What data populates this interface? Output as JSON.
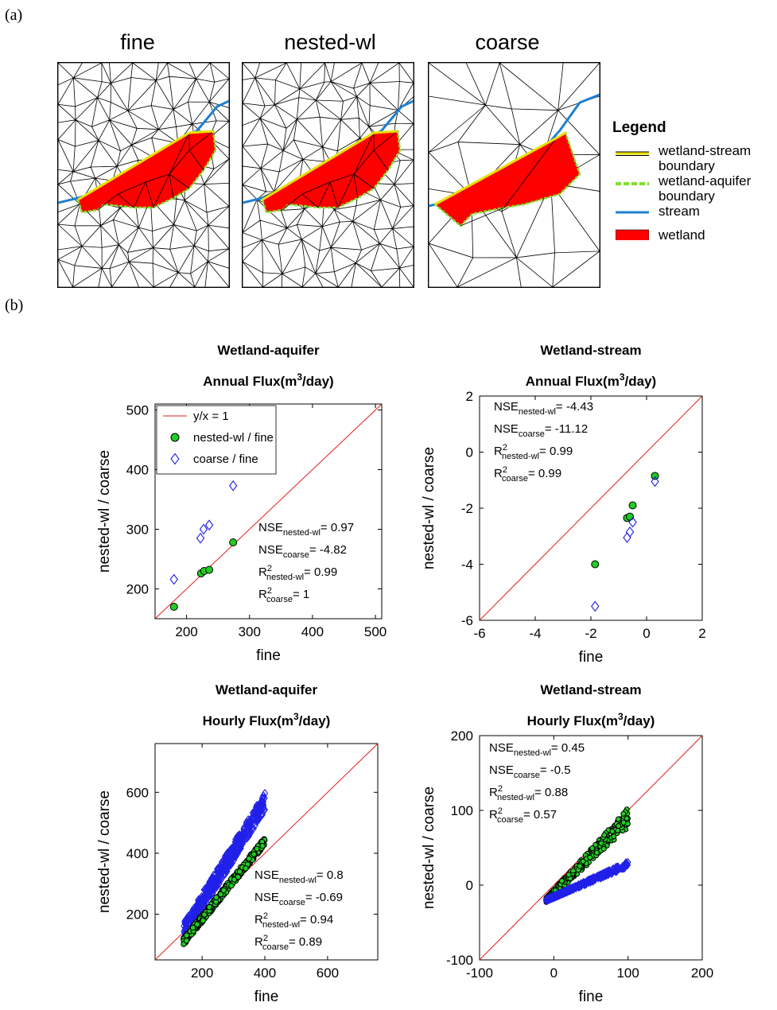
{
  "panel_a_label": "(a)",
  "panel_b_label": "(b)",
  "meshes": [
    {
      "title": "fine"
    },
    {
      "title": "nested-wl"
    },
    {
      "title": "coarse"
    }
  ],
  "legend": {
    "title": "Legend",
    "items": [
      {
        "label": "wetland-stream boundary",
        "swatch": "double-yellow"
      },
      {
        "label": "wetland-aquifer boundary",
        "swatch": "dashed-green"
      },
      {
        "label": "stream",
        "swatch": "blue-line"
      },
      {
        "label": "wetland",
        "swatch": "red-rect"
      }
    ]
  },
  "colors": {
    "wetland": "#ff0000",
    "stream": "#1f7fd0",
    "aquifer_boundary": "#7fe02a",
    "stream_boundary": "#e8e000",
    "one_to_one": "#e02020",
    "nested_marker": "#22cc22",
    "coarse_marker": "#2020e8"
  },
  "chart_data": [
    {
      "type": "scatter",
      "title": "Wetland-aquifer",
      "subtitle_prefix": "Annual Flux(m",
      "subtitle_sup": "3",
      "subtitle_suffix": "/day)",
      "xlabel": "fine",
      "ylabel": "nested-wl / coarse",
      "xlim": [
        150,
        510
      ],
      "ylim": [
        150,
        510
      ],
      "xticks": [
        200,
        300,
        400,
        500
      ],
      "yticks": [
        200,
        300,
        400,
        500
      ],
      "legend": {
        "placement": "top-left",
        "entries": [
          "y/x = 1",
          "nested-wl / fine",
          "coarse / fine"
        ]
      },
      "series": [
        {
          "name": "nested-wl / fine",
          "marker": "circle",
          "points": [
            [
              180,
              170
            ],
            [
              223,
              226
            ],
            [
              228,
              230
            ],
            [
              236,
              232
            ],
            [
              274,
              278
            ]
          ]
        },
        {
          "name": "coarse / fine",
          "marker": "diamond",
          "points": [
            [
              180,
              216
            ],
            [
              222,
              285
            ],
            [
              227,
              300
            ],
            [
              236,
              307
            ],
            [
              274,
              373
            ]
          ]
        }
      ],
      "stats": [
        {
          "base": "NSE",
          "sub": "nested-wl",
          "value": "= 0.97"
        },
        {
          "base": "NSE",
          "sub": "coarse",
          "value": "= -4.82"
        },
        {
          "base": "R",
          "sup": "2",
          "sub": "nested-wl",
          "value": "= 0.99"
        },
        {
          "base": "R",
          "sup": "2",
          "sub": "coarse",
          "value": "= 1"
        }
      ]
    },
    {
      "type": "scatter",
      "title": "Wetland-stream",
      "subtitle_prefix": "Annual Flux(m",
      "subtitle_sup": "3",
      "subtitle_suffix": "/day)",
      "xlabel": "fine",
      "ylabel": "nested-wl / coarse",
      "xlim": [
        -6,
        2
      ],
      "ylim": [
        -6,
        2
      ],
      "xticks": [
        -6,
        -4,
        -2,
        0,
        2
      ],
      "yticks": [
        -6,
        -4,
        -2,
        0,
        2
      ],
      "series": [
        {
          "name": "nested-wl / fine",
          "marker": "circle",
          "points": [
            [
              -1.85,
              -4.0
            ],
            [
              -0.7,
              -2.35
            ],
            [
              -0.6,
              -2.3
            ],
            [
              -0.5,
              -1.9
            ],
            [
              0.3,
              -0.85
            ]
          ]
        },
        {
          "name": "coarse / fine",
          "marker": "diamond",
          "points": [
            [
              -1.85,
              -5.5
            ],
            [
              -0.7,
              -3.05
            ],
            [
              -0.6,
              -2.85
            ],
            [
              -0.5,
              -2.5
            ],
            [
              0.3,
              -1.05
            ]
          ]
        }
      ],
      "stats": [
        {
          "base": "NSE",
          "sub": "nested-wl",
          "value": "= -4.43"
        },
        {
          "base": "NSE",
          "sub": "coarse",
          "value": "= -11.12"
        },
        {
          "base": "R",
          "sup": "2",
          "sub": "nested-wl",
          "value": "= 0.99"
        },
        {
          "base": "R",
          "sup": "2",
          "sub": "coarse",
          "value": "= 0.99"
        }
      ]
    },
    {
      "type": "scatter",
      "title": "Wetland-aquifer",
      "subtitle_prefix": "Hourly Flux(m",
      "subtitle_sup": "3",
      "subtitle_suffix": "/day)",
      "xlabel": "fine",
      "ylabel": "nested-wl / coarse",
      "xlim": [
        50,
        760
      ],
      "ylim": [
        50,
        760
      ],
      "xticks": [
        200,
        400,
        600
      ],
      "yticks": [
        200,
        400,
        600
      ],
      "series": [
        {
          "name": "coarse / fine",
          "marker": "diamond",
          "trend": {
            "x": [
              140,
              400
            ],
            "y": [
              140,
              570
            ],
            "spread": 60
          }
        },
        {
          "name": "nested-wl / fine",
          "marker": "circle",
          "trend": {
            "x": [
              140,
              400
            ],
            "y": [
              110,
              440
            ],
            "spread": 25
          }
        }
      ],
      "stats": [
        {
          "base": "NSE",
          "sub": "nested-wl",
          "value": "= 0.8"
        },
        {
          "base": "NSE",
          "sub": "coarse",
          "value": "= -0.69"
        },
        {
          "base": "R",
          "sup": "2",
          "sub": "nested-wl",
          "value": "= 0.94"
        },
        {
          "base": "R",
          "sup": "2",
          "sub": "coarse",
          "value": "= 0.89"
        }
      ]
    },
    {
      "type": "scatter",
      "title": "Wetland-stream",
      "subtitle_prefix": "Hourly Flux(m",
      "subtitle_sup": "3",
      "subtitle_suffix": "/day)",
      "xlabel": "fine",
      "ylabel": "nested-wl / coarse",
      "xlim": [
        -100,
        200
      ],
      "ylim": [
        -100,
        200
      ],
      "xticks": [
        -100,
        0,
        100,
        200
      ],
      "yticks": [
        -100,
        0,
        100,
        200
      ],
      "series": [
        {
          "name": "nested-wl / fine",
          "marker": "circle",
          "trend": {
            "x": [
              -10,
              100
            ],
            "y": [
              -20,
              90
            ],
            "spread": 20
          }
        },
        {
          "name": "coarse / fine",
          "marker": "diamond",
          "trend": {
            "x": [
              -10,
              100
            ],
            "y": [
              -20,
              28
            ],
            "spread": 6
          }
        }
      ],
      "stats": [
        {
          "base": "NSE",
          "sub": "nested-wl",
          "value": "= 0.45"
        },
        {
          "base": "NSE",
          "sub": "coarse",
          "value": "= -0.5"
        },
        {
          "base": "R",
          "sup": "2",
          "sub": "nested-wl",
          "value": "= 0.88"
        },
        {
          "base": "R",
          "sup": "2",
          "sub": "coarse",
          "value": "= 0.57"
        }
      ]
    }
  ]
}
